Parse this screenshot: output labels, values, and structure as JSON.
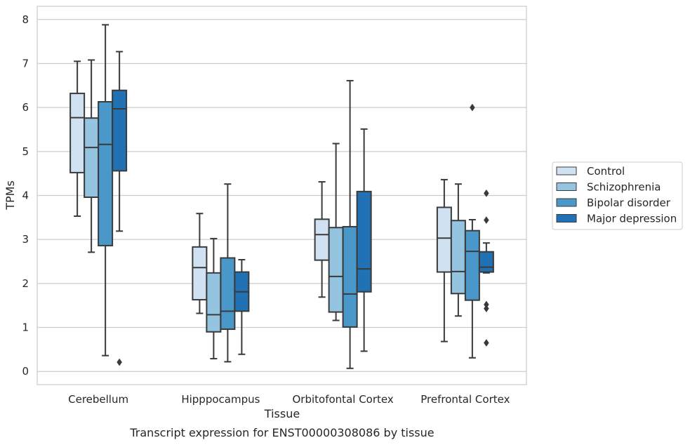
{
  "chart_data": {
    "type": "boxplot",
    "title": "",
    "caption": "Transcript expression for ENST00000308086 by tissue",
    "xlabel": "Tissue",
    "ylabel": "TPMs",
    "ylim": [
      -0.3,
      8.3
    ],
    "yticks": [
      0,
      1,
      2,
      3,
      4,
      5,
      6,
      7,
      8
    ],
    "grid": "horizontal",
    "legend_position": "right",
    "categories": [
      "Cerebellum",
      "Hipppocampus",
      "Orbitofontal Cortex",
      "Prefrontal Cortex"
    ],
    "series": [
      {
        "name": "Control",
        "color": "#d0e1f2",
        "boxes": [
          {
            "whisker_low": 3.53,
            "q1": 4.52,
            "median": 5.77,
            "q3": 6.32,
            "whisker_high": 7.05,
            "outliers": []
          },
          {
            "whisker_low": 1.32,
            "q1": 1.63,
            "median": 2.36,
            "q3": 2.83,
            "whisker_high": 3.59,
            "outliers": []
          },
          {
            "whisker_low": 1.69,
            "q1": 2.53,
            "median": 3.11,
            "q3": 3.46,
            "whisker_high": 4.31,
            "outliers": []
          },
          {
            "whisker_low": 0.68,
            "q1": 2.26,
            "median": 3.03,
            "q3": 3.73,
            "whisker_high": 4.36,
            "outliers": []
          }
        ]
      },
      {
        "name": "Schizophrenia",
        "color": "#94c4df",
        "boxes": [
          {
            "whisker_low": 2.71,
            "q1": 3.96,
            "median": 5.09,
            "q3": 5.76,
            "whisker_high": 7.08,
            "outliers": []
          },
          {
            "whisker_low": 0.29,
            "q1": 0.9,
            "median": 1.29,
            "q3": 2.24,
            "whisker_high": 3.02,
            "outliers": []
          },
          {
            "whisker_low": 1.16,
            "q1": 1.35,
            "median": 2.16,
            "q3": 3.27,
            "whisker_high": 5.18,
            "outliers": []
          },
          {
            "whisker_low": 1.26,
            "q1": 1.77,
            "median": 2.27,
            "q3": 3.43,
            "whisker_high": 4.26,
            "outliers": []
          }
        ]
      },
      {
        "name": "Bipolar disorder",
        "color": "#4a98c9",
        "boxes": [
          {
            "whisker_low": 0.36,
            "q1": 2.86,
            "median": 5.16,
            "q3": 6.13,
            "whisker_high": 7.88,
            "outliers": []
          },
          {
            "whisker_low": 0.22,
            "q1": 0.96,
            "median": 1.37,
            "q3": 2.58,
            "whisker_high": 4.26,
            "outliers": []
          },
          {
            "whisker_low": 0.07,
            "q1": 1.01,
            "median": 1.76,
            "q3": 3.29,
            "whisker_high": 6.61,
            "outliers": []
          },
          {
            "whisker_low": 0.31,
            "q1": 1.62,
            "median": 2.73,
            "q3": 3.2,
            "whisker_high": 3.45,
            "outliers": [
              6.0
            ]
          }
        ]
      },
      {
        "name": "Major depression",
        "color": "#2171b5",
        "boxes": [
          {
            "whisker_low": 3.19,
            "q1": 4.56,
            "median": 5.97,
            "q3": 6.39,
            "whisker_high": 7.27,
            "outliers": [
              0.21
            ]
          },
          {
            "whisker_low": 0.39,
            "q1": 1.37,
            "median": 1.81,
            "q3": 2.26,
            "whisker_high": 2.54,
            "outliers": []
          },
          {
            "whisker_low": 0.46,
            "q1": 1.81,
            "median": 2.33,
            "q3": 4.09,
            "whisker_high": 5.51,
            "outliers": []
          },
          {
            "whisker_low": 2.24,
            "q1": 2.26,
            "median": 2.37,
            "q3": 2.72,
            "whisker_high": 2.92,
            "outliers": [
              0.65,
              1.43,
              1.52,
              3.44,
              4.05
            ]
          }
        ]
      }
    ]
  }
}
